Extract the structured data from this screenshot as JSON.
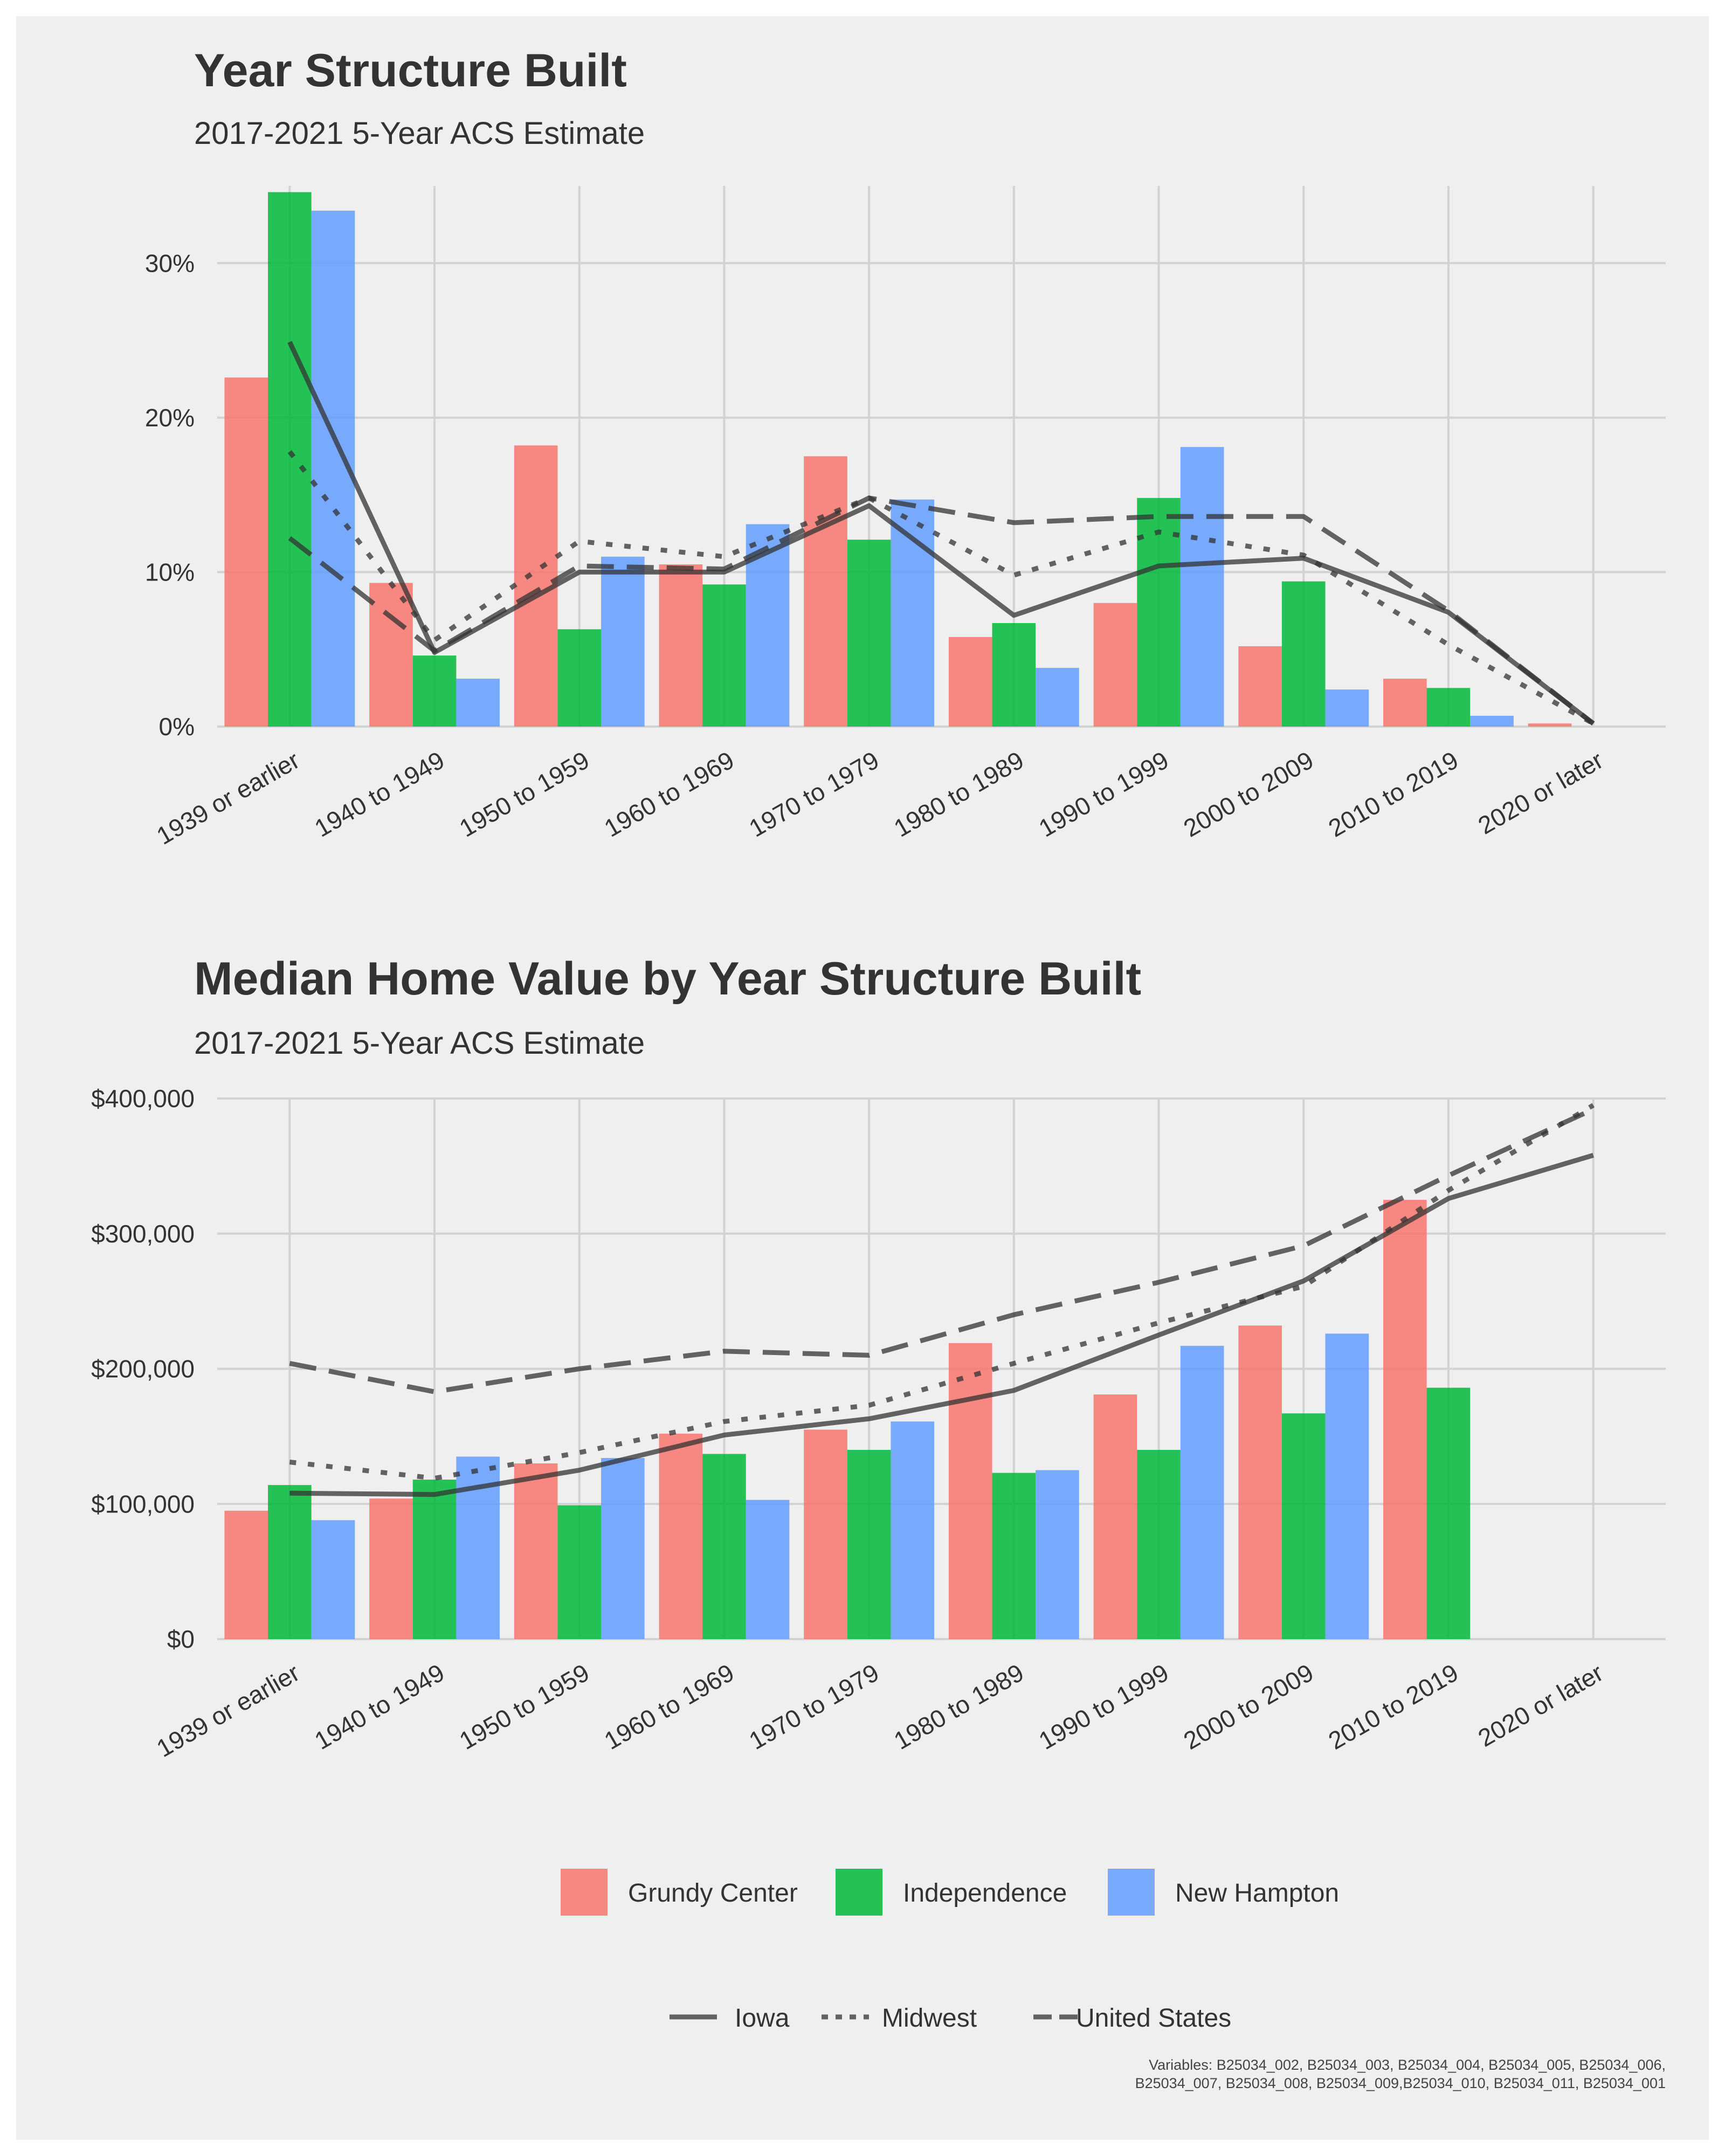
{
  "chart_data": [
    {
      "type": "bar",
      "title": "Year Structure Built",
      "subtitle": "2017-2021 5-Year ACS Estimate",
      "categories": [
        "1939 or earlier",
        "1940 to 1949",
        "1950 to 1959",
        "1960 to 1969",
        "1970 to 1979",
        "1980 to 1989",
        "1990 to 1999",
        "2000 to 2009",
        "2010 to 2019",
        "2020 or later"
      ],
      "y_unit": "percent",
      "ylim": [
        0,
        0.35
      ],
      "y_ticks": [
        0,
        0.1,
        0.2,
        0.3
      ],
      "y_tick_labels": [
        "0%",
        "10%",
        "20%",
        "30%"
      ],
      "grid": true,
      "series": [
        {
          "name": "Grundy Center",
          "kind": "bar",
          "values": [
            0.226,
            0.093,
            0.182,
            0.105,
            0.175,
            0.058,
            0.08,
            0.052,
            0.031,
            0.002
          ]
        },
        {
          "name": "Independence",
          "kind": "bar",
          "values": [
            0.346,
            0.046,
            0.063,
            0.092,
            0.121,
            0.067,
            0.148,
            0.094,
            0.025,
            0.0
          ]
        },
        {
          "name": "New Hampton",
          "kind": "bar",
          "values": [
            0.334,
            0.031,
            0.11,
            0.131,
            0.147,
            0.038,
            0.181,
            0.024,
            0.007,
            0.0
          ]
        },
        {
          "name": "Iowa",
          "kind": "line",
          "dash": "solid",
          "values": [
            0.249,
            0.048,
            0.1,
            0.1,
            0.143,
            0.072,
            0.104,
            0.109,
            0.074,
            0.002
          ]
        },
        {
          "name": "Midwest",
          "kind": "line",
          "dash": "dotted",
          "values": [
            0.178,
            0.056,
            0.12,
            0.11,
            0.148,
            0.098,
            0.126,
            0.111,
            0.053,
            0.002
          ]
        },
        {
          "name": "United States",
          "kind": "line",
          "dash": "dashed",
          "values": [
            0.122,
            0.049,
            0.104,
            0.102,
            0.148,
            0.132,
            0.136,
            0.136,
            0.075,
            0.002
          ]
        }
      ]
    },
    {
      "type": "bar",
      "title": "Median Home Value by Year Structure Built",
      "subtitle": "2017-2021 5-Year ACS Estimate",
      "categories": [
        "1939 or earlier",
        "1940 to 1949",
        "1950 to 1959",
        "1960 to 1969",
        "1970 to 1979",
        "1980 to 1989",
        "1990 to 1999",
        "2000 to 2009",
        "2010 to 2019",
        "2020 or later"
      ],
      "y_unit": "dollars",
      "ylim": [
        0,
        400000
      ],
      "y_ticks": [
        0,
        100000,
        200000,
        300000,
        400000
      ],
      "y_tick_labels": [
        "$0",
        "$100,000",
        "$200,000",
        "$300,000",
        "$400,000"
      ],
      "grid": true,
      "series": [
        {
          "name": "Grundy Center",
          "kind": "bar",
          "values": [
            95000,
            104000,
            130000,
            152000,
            155000,
            219000,
            181000,
            232000,
            325000,
            null
          ]
        },
        {
          "name": "Independence",
          "kind": "bar",
          "values": [
            114000,
            118000,
            99000,
            137000,
            140000,
            123000,
            140000,
            167000,
            186000,
            null
          ]
        },
        {
          "name": "New Hampton",
          "kind": "bar",
          "values": [
            88000,
            135000,
            134000,
            103000,
            161000,
            125000,
            217000,
            226000,
            null,
            null
          ]
        },
        {
          "name": "Iowa",
          "kind": "line",
          "dash": "solid",
          "values": [
            108000,
            107000,
            125000,
            151000,
            163000,
            184000,
            225000,
            265000,
            326000,
            358000
          ]
        },
        {
          "name": "Midwest",
          "kind": "line",
          "dash": "dotted",
          "values": [
            131000,
            119000,
            138000,
            161000,
            173000,
            204000,
            234000,
            261000,
            332000,
            395000
          ]
        },
        {
          "name": "United States",
          "kind": "line",
          "dash": "dashed",
          "values": [
            204000,
            183000,
            200000,
            213000,
            210000,
            240000,
            264000,
            291000,
            343000,
            392000
          ]
        }
      ]
    }
  ],
  "legend": {
    "placement": "bottom",
    "fills": [
      {
        "label": "Grundy Center",
        "color": "#f8766d"
      },
      {
        "label": "Independence",
        "color": "#00ba38"
      },
      {
        "label": "New Hampton",
        "color": "#619cff"
      }
    ],
    "lines": [
      {
        "label": "Iowa",
        "dash": "solid"
      },
      {
        "label": "Midwest",
        "dash": "dotted"
      },
      {
        "label": "United States",
        "dash": "dashed"
      }
    ]
  },
  "caption": [
    "Variables: B25034_002, B25034_003, B25034_004, B25034_005, B25034_006,",
    "B25034_007, B25034_008, B25034_009,B25034_010, B25034_011, B25034_001"
  ],
  "colors": {
    "background": "#efefef",
    "grid": "#d2d2d2",
    "line": "#333333",
    "text": "#333333"
  }
}
